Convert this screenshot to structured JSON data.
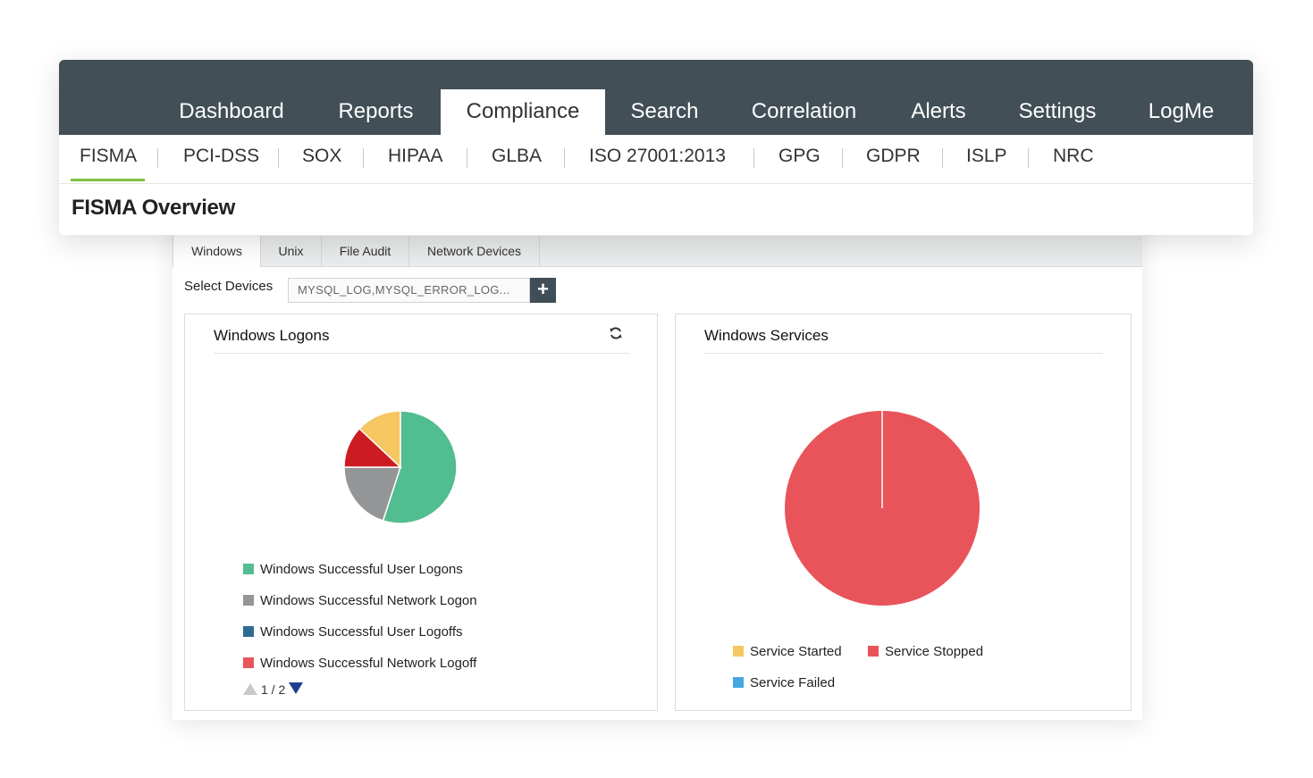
{
  "nav": {
    "tabs": [
      {
        "label": "Dashboard"
      },
      {
        "label": "Reports"
      },
      {
        "label": "Compliance",
        "active": true
      },
      {
        "label": "Search"
      },
      {
        "label": "Correlation"
      },
      {
        "label": "Alerts"
      },
      {
        "label": "Settings"
      },
      {
        "label": "LogMe"
      }
    ]
  },
  "compliance_tabs": [
    {
      "label": "FISMA",
      "active": true
    },
    {
      "label": "PCI-DSS"
    },
    {
      "label": "SOX"
    },
    {
      "label": "HIPAA"
    },
    {
      "label": "GLBA"
    },
    {
      "label": "ISO 27001:2013"
    },
    {
      "label": "GPG"
    },
    {
      "label": "GDPR"
    },
    {
      "label": "ISLP"
    },
    {
      "label": "NRC"
    }
  ],
  "page_title": "FISMA Overview",
  "source_tabs": [
    {
      "label": "Windows",
      "active": true
    },
    {
      "label": "Unix"
    },
    {
      "label": "File Audit"
    },
    {
      "label": "Network Devices"
    }
  ],
  "select_devices": {
    "label": "Select Devices",
    "value": "MYSQL_LOG,MYSQL_ERROR_LOG...",
    "add_label": "+"
  },
  "icons": {
    "refresh": "refresh-icon",
    "pager_prev": "triangle-up-icon",
    "pager_next": "triangle-down-icon"
  },
  "widgets": {
    "logons": {
      "title": "Windows Logons",
      "pager": "1 / 2",
      "legend": [
        {
          "label": "Windows Successful User Logons",
          "color": "#52bd90"
        },
        {
          "label": "Windows Successful Network Logon",
          "color": "#939596"
        },
        {
          "label": "Windows Successful User Logoffs",
          "color": "#2e6b93"
        },
        {
          "label": "Windows Successful Network Logoff",
          "color": "#e8545a"
        }
      ]
    },
    "services": {
      "title": "Windows Services",
      "legend": [
        {
          "label": "Service Started",
          "color": "#f6c660"
        },
        {
          "label": "Service Stopped",
          "color": "#e8545a"
        },
        {
          "label": "Service Failed",
          "color": "#45a7e0"
        }
      ]
    }
  },
  "chart_data": [
    {
      "type": "pie",
      "title": "Windows Logons",
      "categories": [
        "Windows Successful User Logons",
        "Windows Successful Network Logon",
        "Red slice",
        "Yellow slice"
      ],
      "values": [
        55,
        20,
        12,
        13
      ],
      "colors": [
        "#52bd90",
        "#939596",
        "#cc1c22",
        "#f6c660"
      ]
    },
    {
      "type": "pie",
      "title": "Windows Services",
      "categories": [
        "Service Stopped"
      ],
      "values": [
        100
      ],
      "colors": [
        "#e8545a"
      ]
    }
  ]
}
